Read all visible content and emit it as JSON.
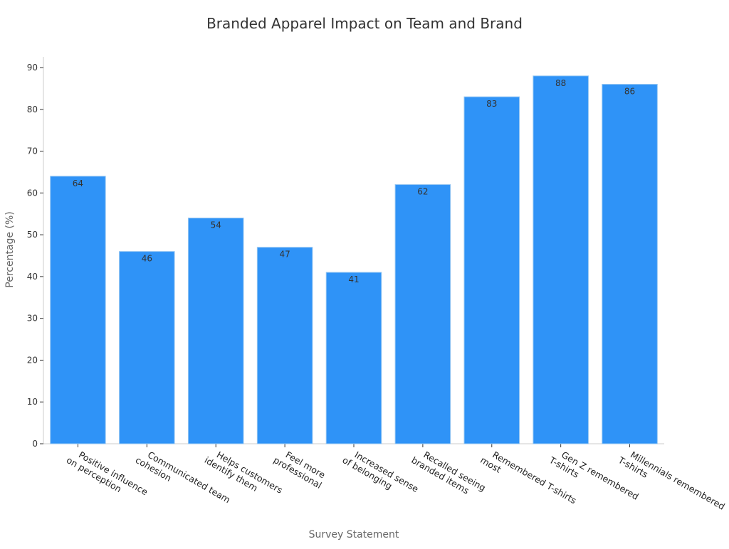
{
  "chart_data": {
    "type": "bar",
    "title": "Branded Apparel Impact on Team and Brand",
    "xlabel": "Survey Statement",
    "ylabel": "Percentage (%)",
    "ylim": [
      0,
      90
    ],
    "y_ticks": [
      0,
      10,
      20,
      30,
      40,
      50,
      60,
      70,
      80,
      90
    ],
    "grid": false,
    "bar_color": "#2f93f7",
    "bar_edge_color": "#93c5f2",
    "categories": [
      [
        "Positive influence",
        "on perception"
      ],
      [
        "Communicated team",
        "cohesion"
      ],
      [
        "Helps customers",
        "identify them"
      ],
      [
        "Feel more",
        "professional"
      ],
      [
        "Increased sense",
        "of belonging"
      ],
      [
        "Recalled seeing",
        "branded items"
      ],
      [
        "Remembered T-shirts",
        "most"
      ],
      [
        "Gen Z remembered",
        "T-shirts"
      ],
      [
        "Millennials remembered",
        "T-shirts"
      ]
    ],
    "values": [
      64,
      46,
      54,
      47,
      41,
      62,
      83,
      88,
      86
    ]
  }
}
